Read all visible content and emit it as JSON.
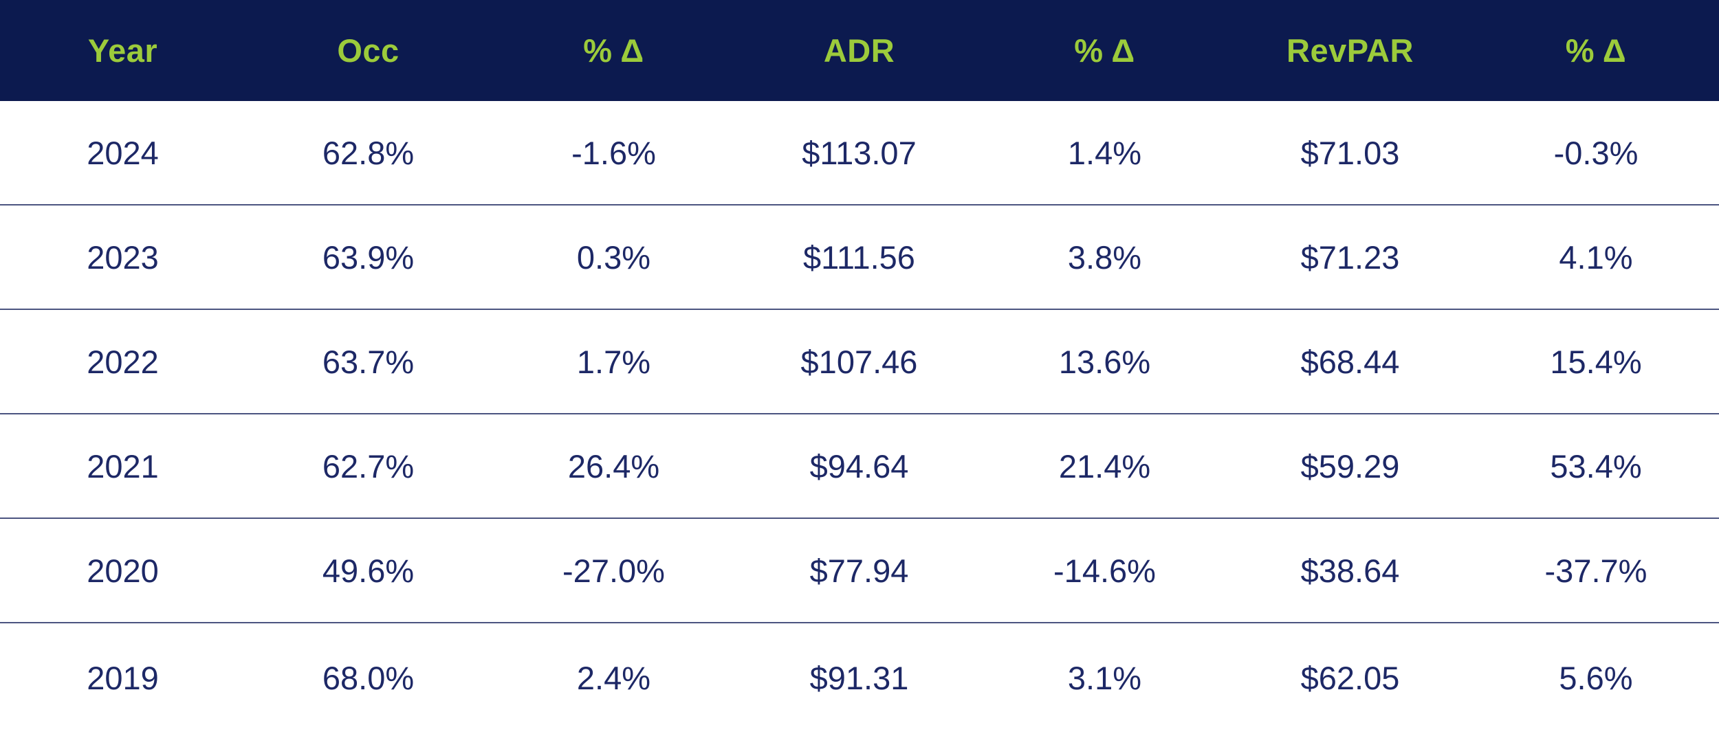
{
  "table": {
    "columns": [
      "Year",
      "Occ",
      "% Δ",
      "ADR",
      "% Δ",
      "RevPAR",
      "% Δ"
    ],
    "rows": [
      [
        "2024",
        "62.8%",
        "-1.6%",
        "$113.07",
        "1.4%",
        "$71.03",
        "-0.3%"
      ],
      [
        "2023",
        "63.9%",
        "0.3%",
        "$111.56",
        "3.8%",
        "$71.23",
        "4.1%"
      ],
      [
        "2022",
        "63.7%",
        "1.7%",
        "$107.46",
        "13.6%",
        "$68.44",
        "15.4%"
      ],
      [
        "2021",
        "62.7%",
        "26.4%",
        "$94.64",
        "21.4%",
        "$59.29",
        "53.4%"
      ],
      [
        "2020",
        "49.6%",
        "-27.0%",
        "$77.94",
        "-14.6%",
        "$38.64",
        "-37.7%"
      ],
      [
        "2019",
        "68.0%",
        "2.4%",
        "$91.31",
        "3.1%",
        "$62.05",
        "5.6%"
      ]
    ]
  },
  "colors": {
    "header_bg": "#0c1a4f",
    "header_text": "#9ccb3b",
    "body_text": "#1d2866",
    "divider": "#4b5480"
  }
}
